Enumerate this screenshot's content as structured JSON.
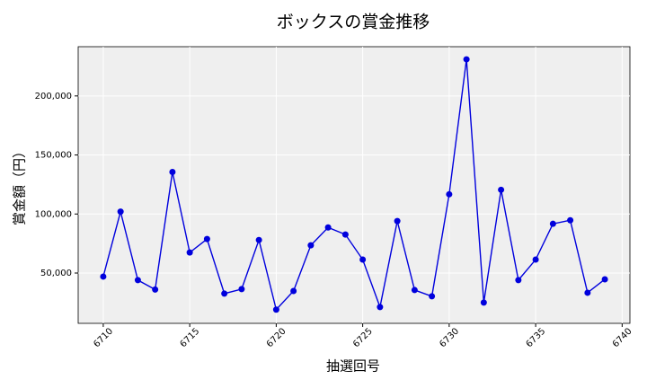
{
  "chart_data": {
    "type": "line",
    "title": "ボックスの賞金推移",
    "xlabel": "抽選回号",
    "ylabel": "賞金額（円）",
    "x": [
      6710,
      6711,
      6712,
      6713,
      6714,
      6715,
      6716,
      6717,
      6718,
      6719,
      6720,
      6721,
      6722,
      6723,
      6724,
      6725,
      6726,
      6727,
      6728,
      6729,
      6730,
      6731,
      6732,
      6733,
      6734,
      6735,
      6736,
      6737,
      6738,
      6739
    ],
    "series": [
      {
        "color": "#0000dd",
        "values": [
          47000,
          102000,
          44000,
          36000,
          135600,
          67400,
          78800,
          32600,
          36400,
          78000,
          19000,
          34800,
          73500,
          88600,
          82600,
          61400,
          21200,
          94000,
          35600,
          30300,
          116700,
          231000,
          25000,
          120500,
          44000,
          61400,
          91700,
          94700,
          33300,
          44700
        ]
      }
    ],
    "xlim": [
      6708.55,
      6740.45
    ],
    "ylim": [
      7400,
      241700
    ],
    "xticks": [
      6710,
      6715,
      6720,
      6725,
      6730,
      6735,
      6740
    ],
    "yticks": [
      {
        "value": 50000,
        "label": "50,000"
      },
      {
        "value": 100000,
        "label": "100,000"
      },
      {
        "value": 150000,
        "label": "150,000"
      },
      {
        "value": 200000,
        "label": "200,000"
      }
    ],
    "grid": true
  }
}
